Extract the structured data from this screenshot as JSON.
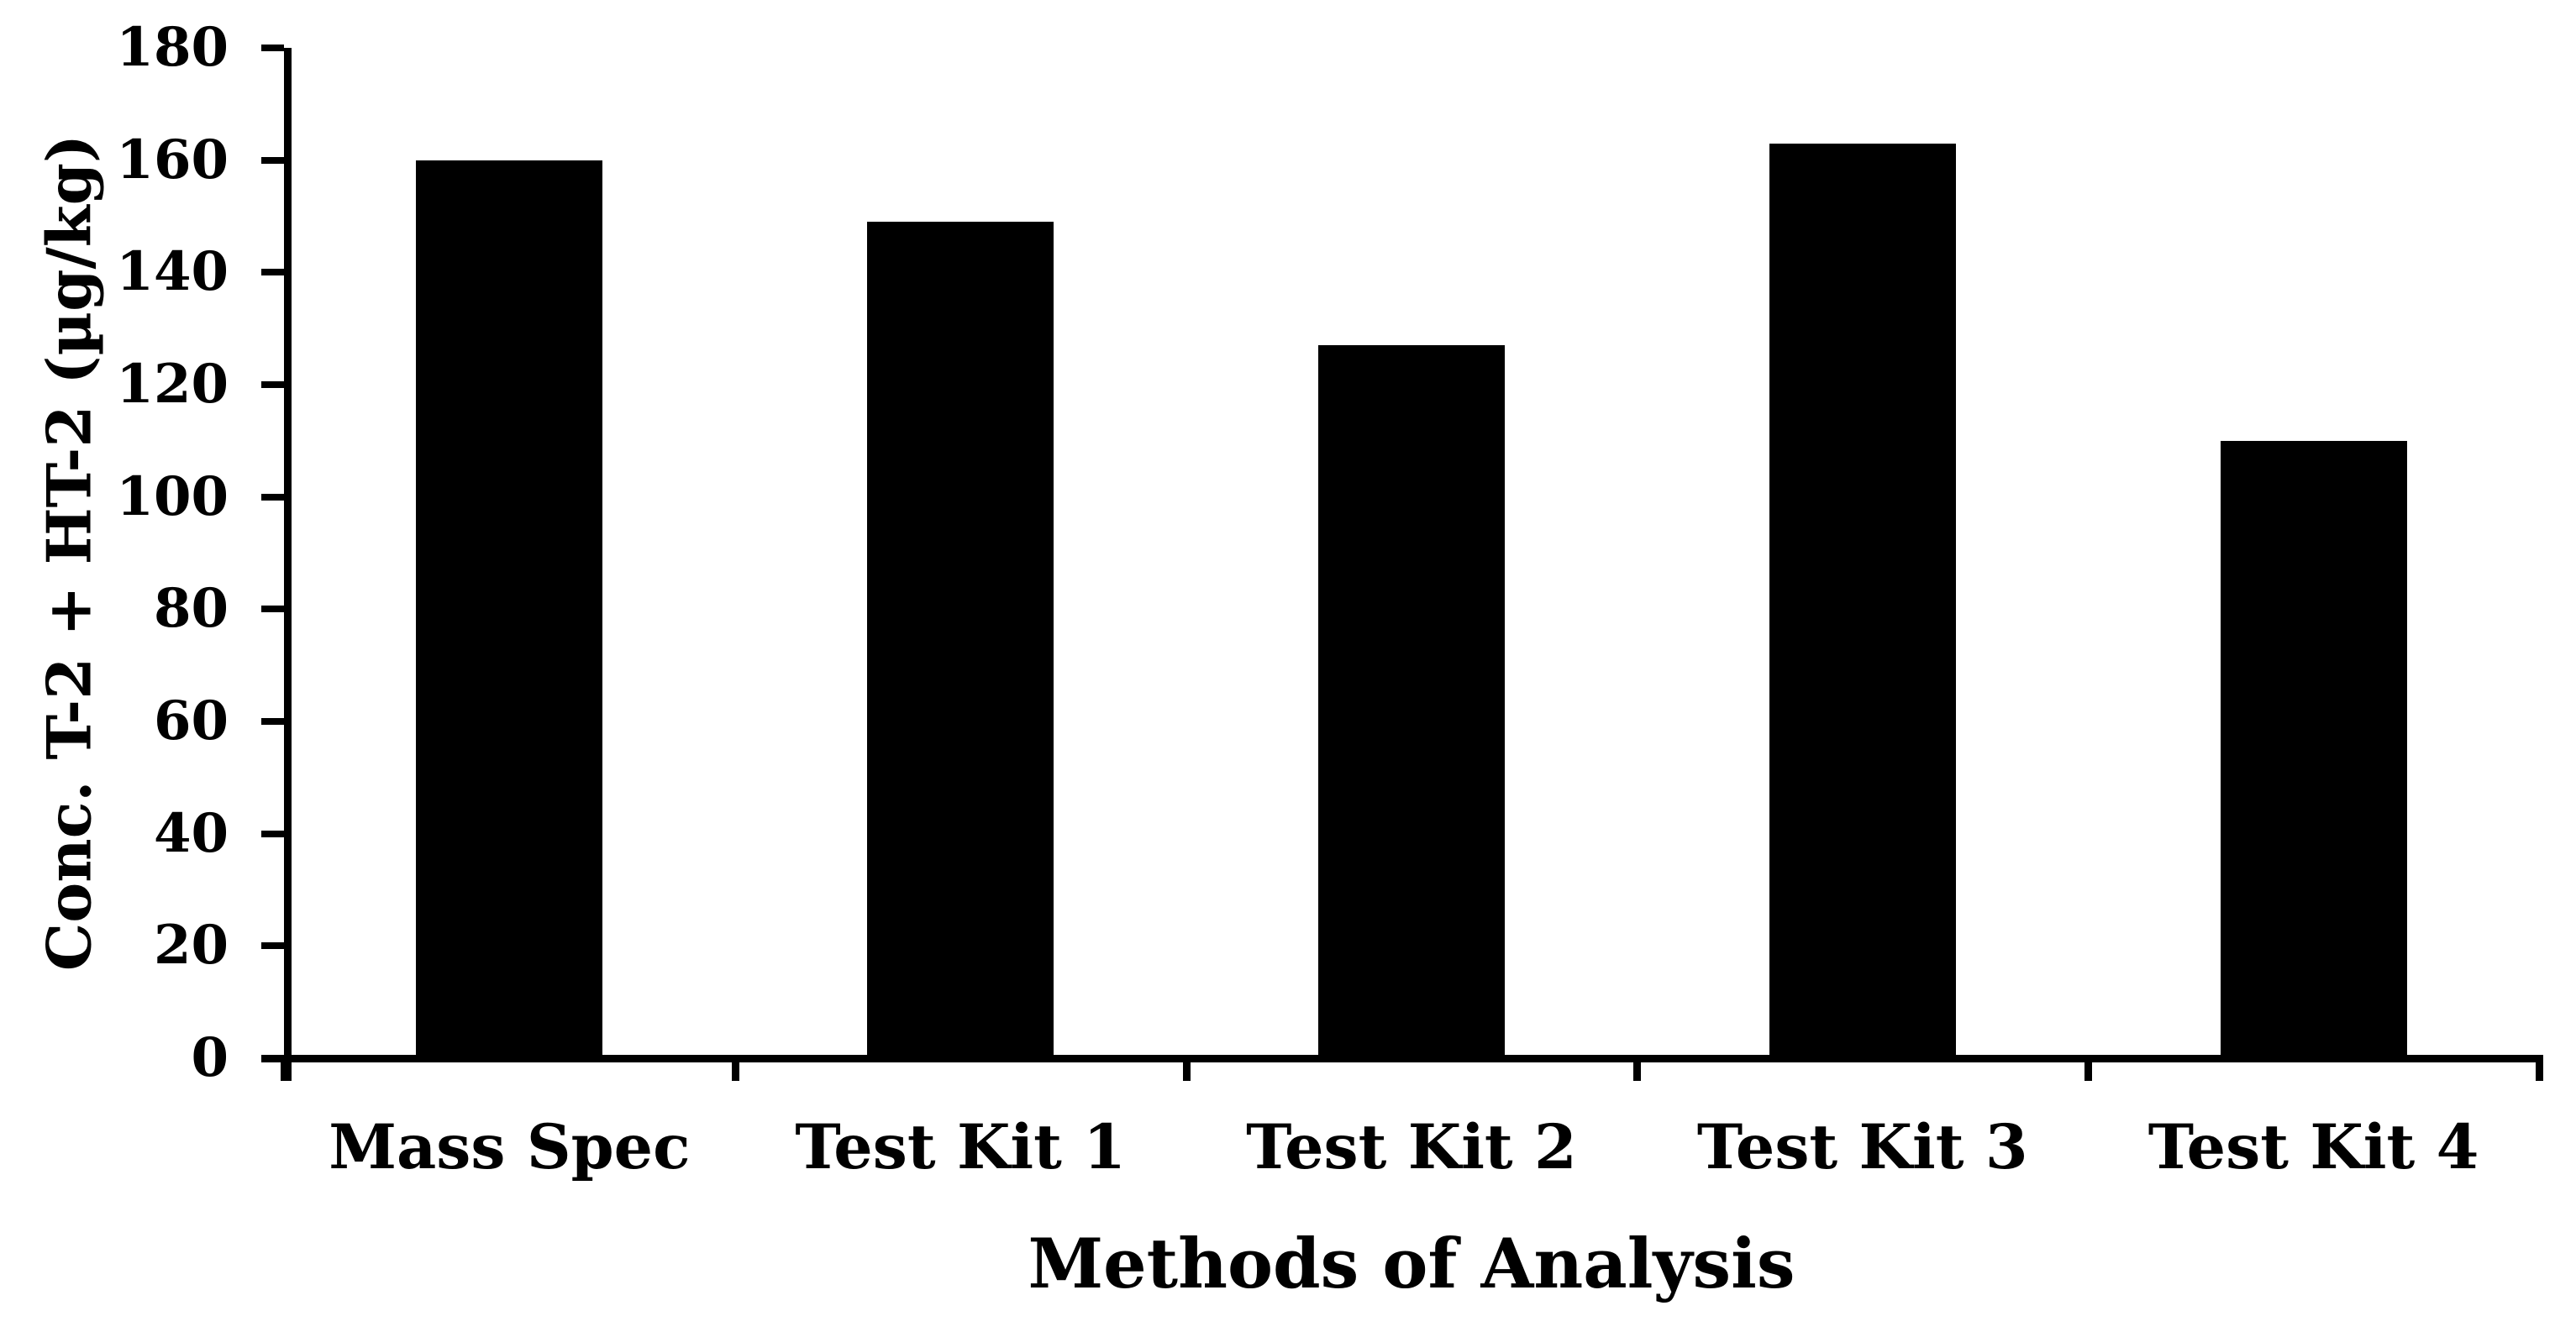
{
  "chart_data": {
    "type": "bar",
    "title": "",
    "categories": [
      "Mass Spec",
      "Test Kit 1",
      "Test Kit 2",
      "Test Kit 3",
      "Test Kit 4"
    ],
    "values": [
      160,
      149,
      127,
      163,
      110
    ],
    "xlabel": "Methods of Analysis",
    "ylabel": "Conc. T-2 + HT-2 (µg/kg)",
    "ylim": [
      0,
      180
    ],
    "yticks": [
      0,
      20,
      40,
      60,
      80,
      100,
      120,
      140,
      160,
      180
    ],
    "grid": false,
    "legend": null,
    "bar_color": "#000000",
    "axis_color": "#000000",
    "text_color": "#000000",
    "background_color": "#ffffff"
  }
}
